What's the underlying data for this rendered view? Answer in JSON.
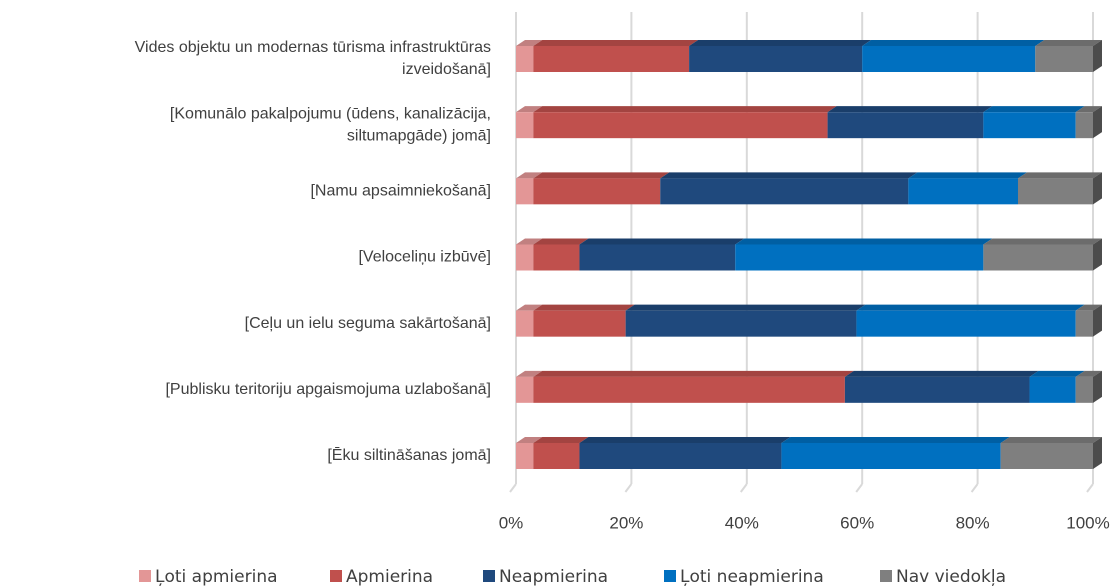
{
  "chart_data": {
    "type": "bar",
    "orientation": "horizontal",
    "stacked": true,
    "categories": [
      [
        "Vides objektu un  modernas tūrisma infrastruktūras",
        "izveidošanā]"
      ],
      [
        "[Komunālo pakalpojumu (ūdens, kanalizācija,",
        "siltumapgāde) jomā]"
      ],
      [
        "[Namu apsaimniekošanā]"
      ],
      [
        "[Veloceliņu izbūvē]"
      ],
      [
        "[Ceļu un ielu seguma sakārtošanā]"
      ],
      [
        "[Publisku teritoriju apgaismojuma uzlabošanā]"
      ],
      [
        "[Ēku siltināšanas jomā]"
      ]
    ],
    "series": [
      {
        "name": "Ļoti apmierina",
        "color": "#e39696",
        "values": [
          3,
          3,
          3,
          3,
          3,
          3,
          3
        ]
      },
      {
        "name": "Apmierina",
        "color": "#c0504d",
        "values": [
          27,
          51,
          22,
          8,
          16,
          54,
          8
        ]
      },
      {
        "name": "Neapmierina",
        "color": "#1f497d",
        "values": [
          30,
          27,
          43,
          27,
          40,
          32,
          35
        ]
      },
      {
        "name": "Ļoti neapmierina",
        "color": "#0070c0",
        "values": [
          30,
          16,
          19,
          43,
          38,
          8,
          38
        ]
      },
      {
        "name": "Nav viedokļa",
        "color": "#7f7f7f",
        "values": [
          10,
          3,
          13,
          19,
          3,
          3,
          16
        ]
      }
    ],
    "xlim": [
      0,
      100
    ],
    "xticks": [
      {
        "value": 0,
        "label": "0%"
      },
      {
        "value": 20,
        "label": "20%"
      },
      {
        "value": 40,
        "label": "40%"
      },
      {
        "value": 60,
        "label": "60%"
      },
      {
        "value": 80,
        "label": "80%"
      },
      {
        "value": 100,
        "label": "100%"
      }
    ],
    "grid": true,
    "legend": "bottom"
  }
}
